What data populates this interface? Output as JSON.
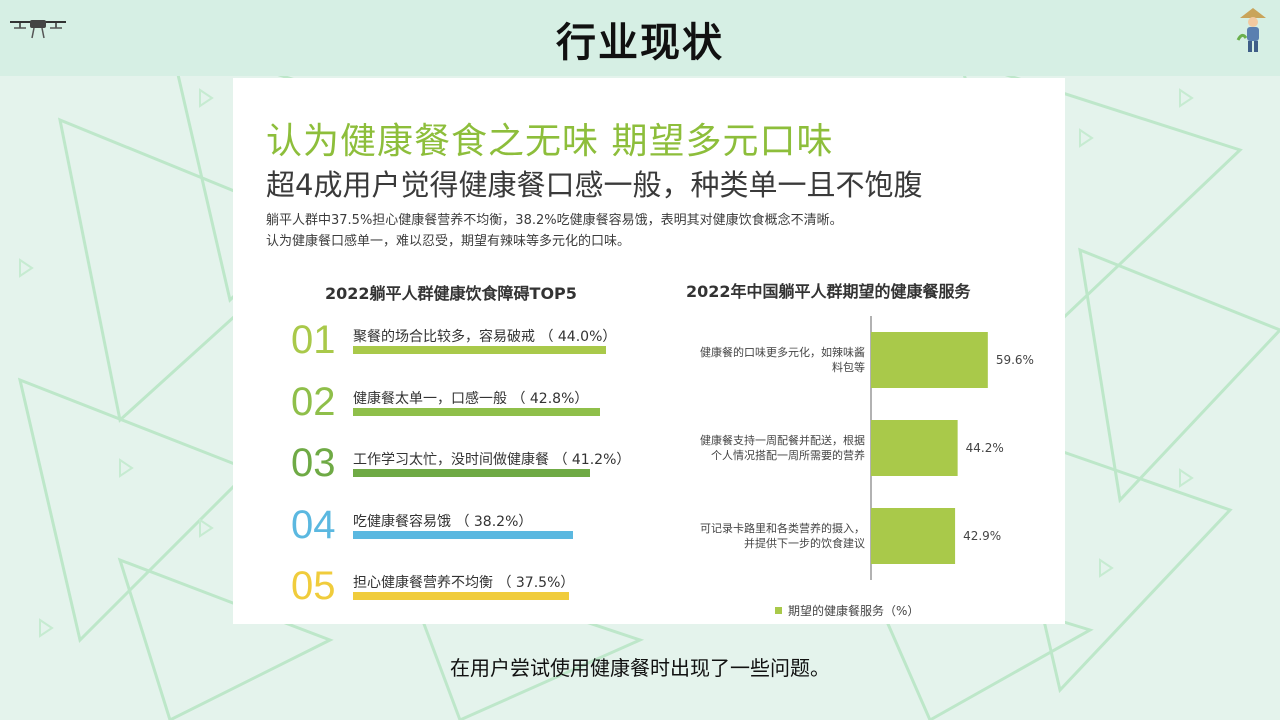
{
  "page": {
    "title": "行业现状",
    "caption": "在用户尝试使用健康餐时出现了一些问题。"
  },
  "card": {
    "headline": "认为健康餐食之无味 期望多元口味",
    "subheadline": "超4成用户觉得健康餐口感一般，种类单一且不饱腹",
    "desc_line1": "躺平人群中37.5%担心健康餐营养不均衡，38.2%吃健康餐容易饿，表明其对健康饮食概念不清晰。",
    "desc_line2": "认为健康餐口感单一，难以忍受，期望有辣味等多元化的口味。"
  },
  "icons": {
    "drone": "drone-icon",
    "farmer": "farmer-icon"
  },
  "chart_data": [
    {
      "type": "bar",
      "orientation": "horizontal",
      "title": "2022躺平人群健康饮食障碍TOP5",
      "categories": [
        "聚餐的场合比较多，容易破戒",
        "健康餐太单一，口感一般",
        "工作学习太忙，没时间做健康餐",
        "吃健康餐容易饿",
        "担心健康餐营养不均衡"
      ],
      "ranks": [
        "01",
        "02",
        "03",
        "04",
        "05"
      ],
      "values": [
        44.0,
        42.8,
        41.2,
        38.2,
        37.5
      ],
      "labels": [
        "聚餐的场合比较多，容易破戒 （ 44.0%）",
        "健康餐太单一，口感一般 （ 42.8%）",
        "工作学习太忙，没时间做健康餐 （ 41.2%）",
        "吃健康餐容易饿 （ 38.2%）",
        "担心健康餐营养不均衡 （ 37.5%）"
      ],
      "colors": [
        "#a9c94a",
        "#8fbf4a",
        "#6faa45",
        "#5bb8e0",
        "#f0cc3c"
      ]
    },
    {
      "type": "bar",
      "orientation": "horizontal",
      "title": "2022年中国躺平人群期望的健康餐服务",
      "categories": [
        [
          "健康餐的口味更多元化，如辣味酱",
          "料包等"
        ],
        [
          "健康餐支持一周配餐并配送，根据",
          "个人情况搭配一周所需要的营养"
        ],
        [
          "可记录卡路里和各类营养的摄入，",
          "并提供下一步的饮食建议"
        ]
      ],
      "values": [
        59.6,
        44.2,
        42.9
      ],
      "value_labels": [
        "59.6%",
        "44.2%",
        "42.9%"
      ],
      "legend": "期望的健康餐服务（%）",
      "color": "#a9c94a"
    }
  ]
}
